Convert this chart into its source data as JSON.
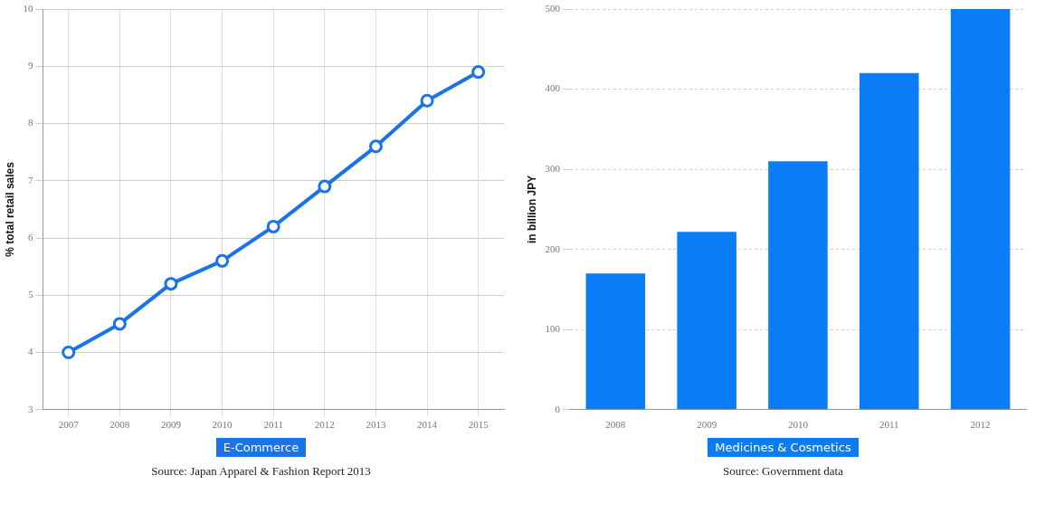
{
  "chart_data": [
    {
      "type": "line",
      "ylabel": "% total retail sales",
      "categories": [
        "2007",
        "2008",
        "2009",
        "2010",
        "2011",
        "2012",
        "2013",
        "2014",
        "2015"
      ],
      "series": [
        {
          "name": "E-Commerce",
          "color": "#1a73e8",
          "values": [
            4.0,
            4.5,
            5.2,
            5.6,
            6.2,
            6.9,
            7.6,
            8.4,
            8.9
          ]
        }
      ],
      "ylim": [
        3,
        10
      ],
      "yticks": [
        3,
        4,
        5,
        6,
        7,
        8,
        9,
        10
      ],
      "grid": true,
      "legend": "bottom",
      "marker": "circle",
      "line_style": "solid",
      "annotations": [
        "Source: Japan Apparel & Fashion Report 2013"
      ]
    },
    {
      "type": "bar",
      "ylabel": "in billion JPY",
      "categories": [
        "2008",
        "2009",
        "2010",
        "2011",
        "2012"
      ],
      "series": [
        {
          "name": "Medicines & Cosmetics",
          "color": "#0a7cf5",
          "values": [
            170,
            222,
            310,
            420,
            500
          ]
        }
      ],
      "ylim": [
        0,
        500
      ],
      "yticks": [
        0,
        100,
        200,
        300,
        400,
        500
      ],
      "grid": "y",
      "legend": "bottom",
      "annotations": [
        "Source: Government data"
      ]
    }
  ]
}
